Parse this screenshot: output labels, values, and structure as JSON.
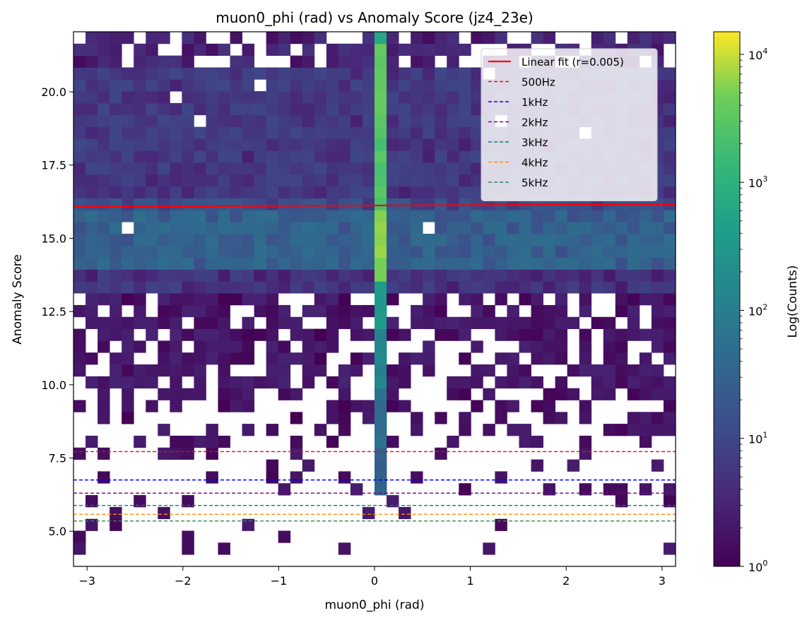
{
  "chart_data": {
    "type": "heatmap",
    "title": "muon0_phi (rad) vs Anomaly Score (jz4_23e)",
    "xlabel": "muon0_phi (rad)",
    "ylabel": "Anomaly Score",
    "colorbar_label": "Log(Counts)",
    "color_scale": "log",
    "colormap": "viridis",
    "colorbar_range": [
      1,
      15000
    ],
    "colorbar_ticks": [
      {
        "value": 1,
        "base": "10",
        "exp": "0"
      },
      {
        "value": 10,
        "base": "10",
        "exp": "1"
      },
      {
        "value": 100,
        "base": "10",
        "exp": "2"
      },
      {
        "value": 1000,
        "base": "10",
        "exp": "3"
      },
      {
        "value": 10000,
        "base": "10",
        "exp": "4"
      }
    ],
    "xlim": [
      -3.1416,
      3.1416
    ],
    "ylim": [
      3.8,
      22.05
    ],
    "x_ticks": [
      {
        "value": -3,
        "label": "−3"
      },
      {
        "value": -2,
        "label": "−2"
      },
      {
        "value": -1,
        "label": "−1"
      },
      {
        "value": 0,
        "label": "0"
      },
      {
        "value": 1,
        "label": "1"
      },
      {
        "value": 2,
        "label": "2"
      },
      {
        "value": 3,
        "label": "3"
      }
    ],
    "y_ticks": [
      {
        "value": 5.0,
        "label": "5.0"
      },
      {
        "value": 7.5,
        "label": "7.5"
      },
      {
        "value": 10.0,
        "label": "10.0"
      },
      {
        "value": 12.5,
        "label": "12.5"
      },
      {
        "value": 15.0,
        "label": "15.0"
      },
      {
        "value": 17.5,
        "label": "17.5"
      },
      {
        "value": 20.0,
        "label": "20.0"
      }
    ],
    "bins": {
      "x_edges": [
        -3.1416,
        3.1416
      ],
      "x_count": 50,
      "y_range": [
        3.8,
        22.05
      ],
      "y_count": 45,
      "central_column_x": 0.06,
      "central_column_counts_by_score": [
        {
          "y_range": [
            6.4,
            8.0
          ],
          "counts": 30
        },
        {
          "y_range": [
            8.0,
            10.0
          ],
          "counts": 60
        },
        {
          "y_range": [
            10.0,
            12.0
          ],
          "counts": 150
        },
        {
          "y_range": [
            12.0,
            13.5
          ],
          "counts": 400
        },
        {
          "y_range": [
            13.5,
            16.0
          ],
          "counts": 6000
        },
        {
          "y_range": [
            16.0,
            18.5
          ],
          "counts": 2500
        },
        {
          "y_range": [
            18.5,
            21.5
          ],
          "counts": 3500
        },
        {
          "y_range": [
            21.5,
            22.05
          ],
          "counts": 700
        }
      ]
    },
    "fit_line": {
      "label": "Linear fit (r=0.005)",
      "color": "#ff0000",
      "y_at_xmin": 16.08,
      "y_at_xmax": 16.16
    },
    "thresholds": [
      {
        "label": "500Hz",
        "y": 7.72,
        "color": "#ff0000"
      },
      {
        "label": "1kHz",
        "y": 6.75,
        "color": "#0000ff"
      },
      {
        "label": "2kHz",
        "y": 6.3,
        "color": "#800080"
      },
      {
        "label": "3kHz",
        "y": 5.88,
        "color": "#008080"
      },
      {
        "label": "4kHz",
        "y": 5.58,
        "color": "#ff8c00"
      },
      {
        "label": "5kHz",
        "y": 5.35,
        "color": "#2e8b57"
      }
    ],
    "legend_position": "top-right",
    "grid": false
  }
}
